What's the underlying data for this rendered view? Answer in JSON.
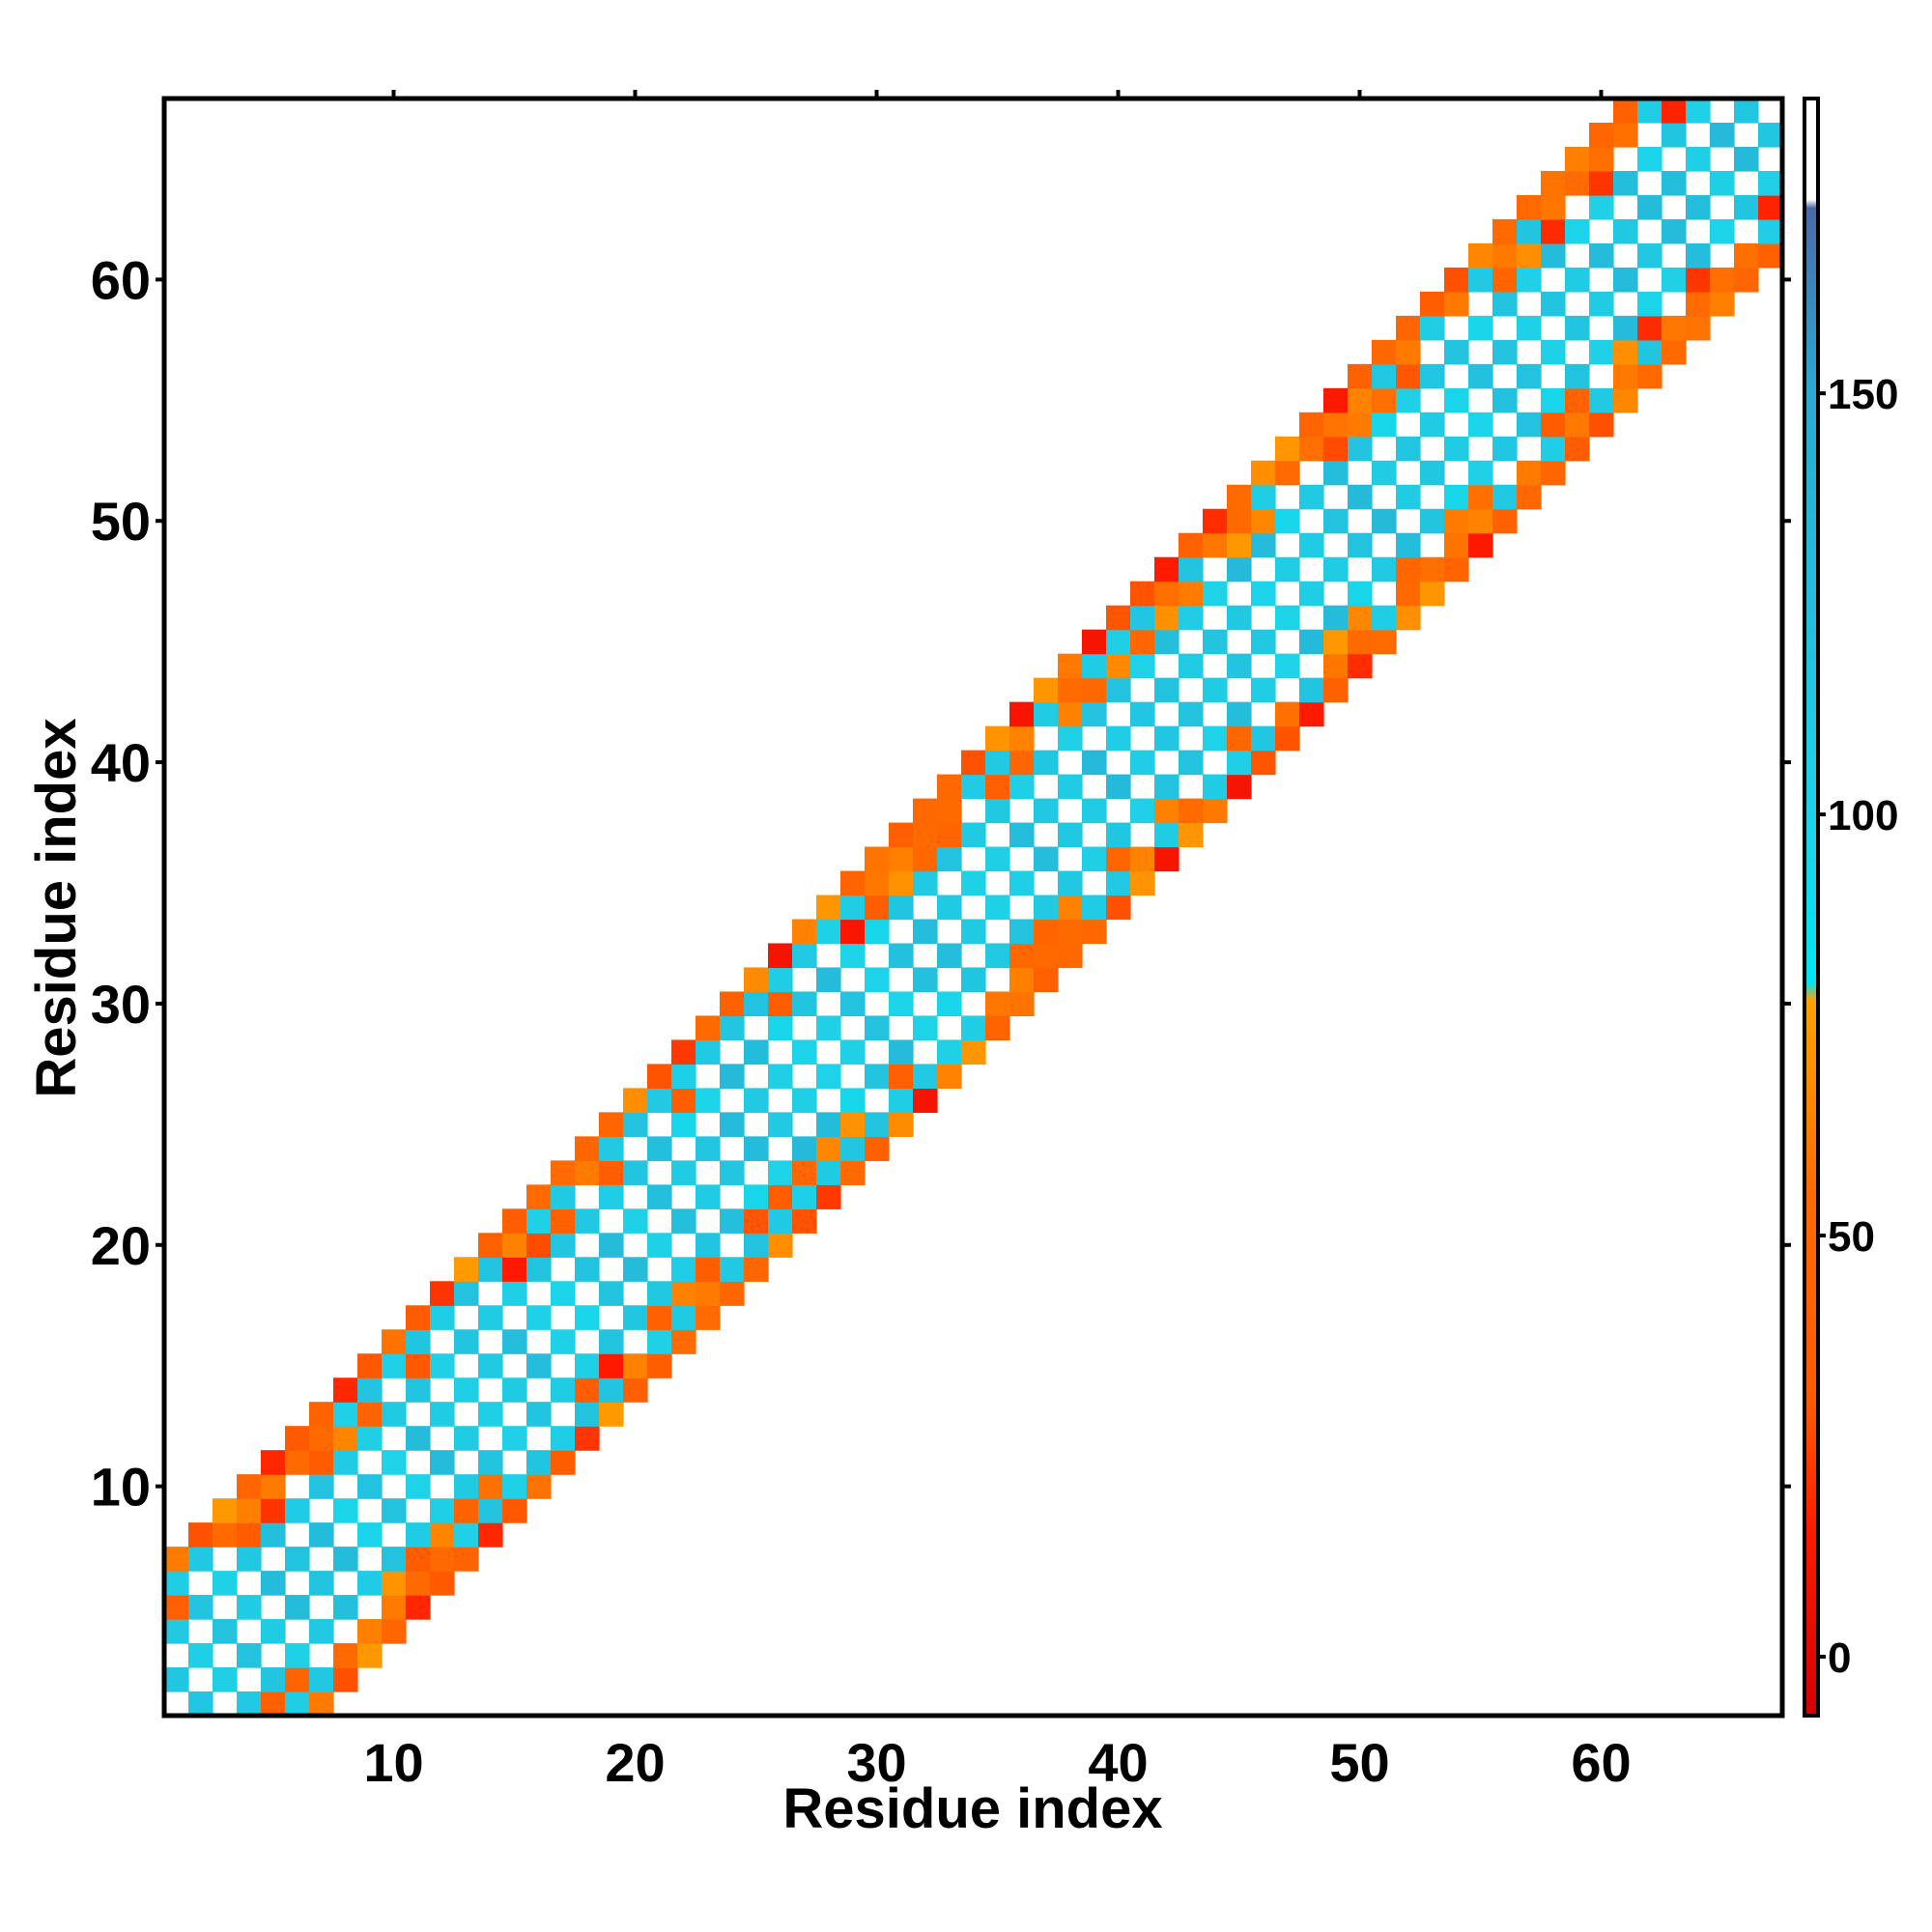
{
  "chart_data": {
    "type": "heatmap",
    "title": "",
    "xlabel": "Residue index",
    "ylabel": "Residue index",
    "xlim": [
      0.5,
      67.5
    ],
    "ylim": [
      0.5,
      67.5
    ],
    "xticks": [
      10,
      20,
      30,
      40,
      50,
      60
    ],
    "yticks": [
      10,
      20,
      30,
      40,
      50,
      60
    ],
    "grid": false,
    "value_description": "Cells are drawn for residue pairs whose indices differ by 1 to 6 (a band around the diagonal); the diagonal itself and the alternating skipped offsets are blank. Cell colours read off the colour bar at 0-175.",
    "colorbar": {
      "range": [
        -7,
        185
      ],
      "ticks": [
        0,
        50,
        100,
        150
      ],
      "stops": [
        {
          "value": -7,
          "color": "#d40000"
        },
        {
          "value": 15,
          "color": "#ff1a00"
        },
        {
          "value": 30,
          "color": "#ff5a00"
        },
        {
          "value": 55,
          "color": "#ff6a00"
        },
        {
          "value": 68,
          "color": "#ff8c00"
        },
        {
          "value": 78,
          "color": "#ffa000"
        },
        {
          "value": 80,
          "color": "#00e5f0"
        },
        {
          "value": 100,
          "color": "#1ed2e8"
        },
        {
          "value": 150,
          "color": "#2aaad0"
        },
        {
          "value": 172,
          "color": "#4a6aa8"
        },
        {
          "value": 173,
          "color": "#ffffff"
        },
        {
          "value": 185,
          "color": "#ffffff"
        }
      ]
    }
  }
}
